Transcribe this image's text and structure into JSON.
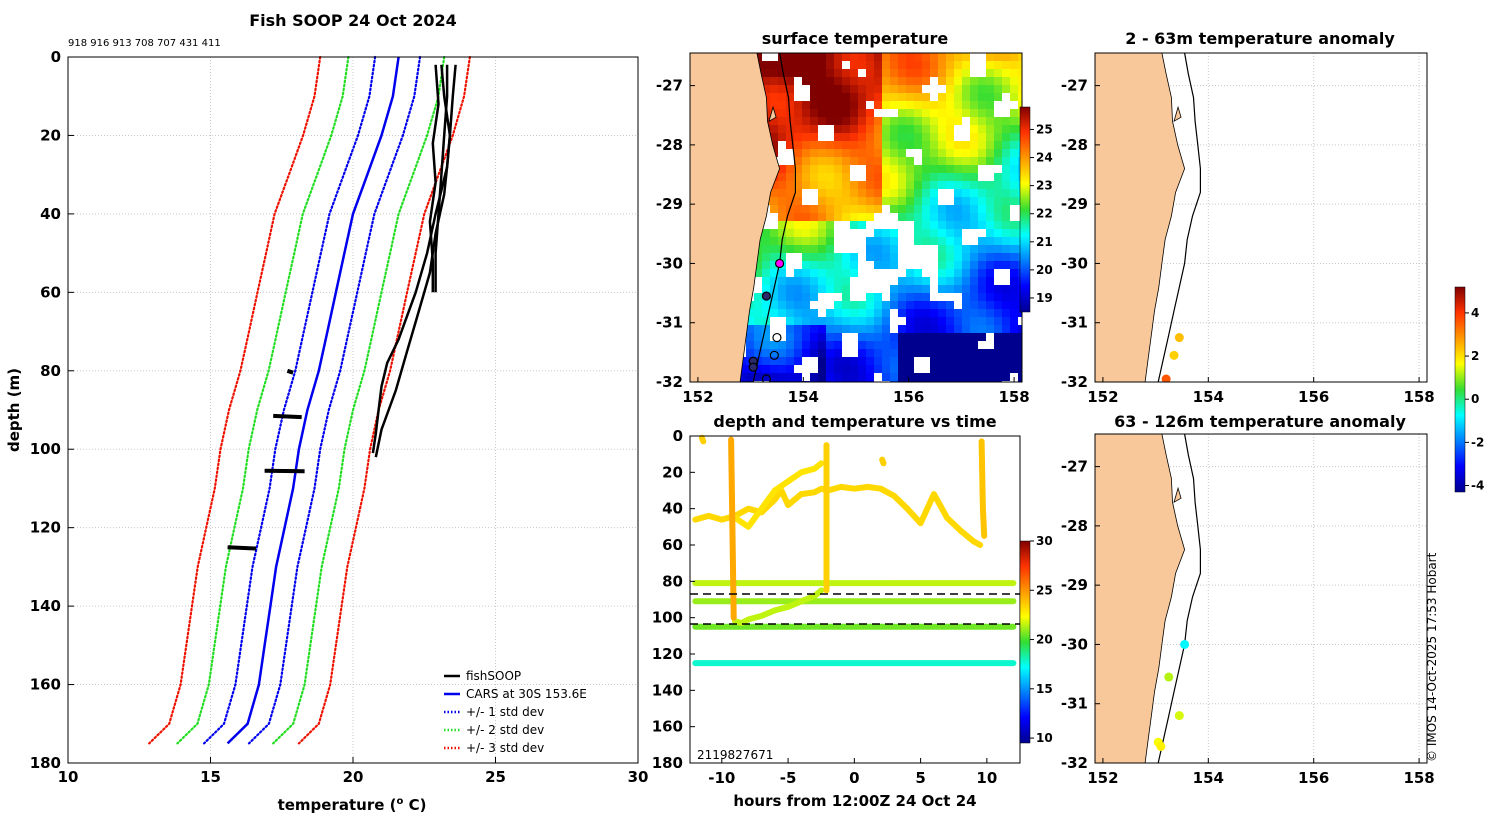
{
  "colors": {
    "land": "#f8c89a",
    "profile": "#000000",
    "cars": "#0000ee",
    "std1": "#0000ee",
    "std2": "#22dd22",
    "std3": "#ee1100",
    "grid": "#c8c8c8"
  },
  "credit": "© IMOS 14-Oct-2025 17:53 Hobart",
  "chart_data": [
    {
      "id": "profile",
      "type": "line",
      "title": "Fish SOOP 24 Oct 2024",
      "ids_label": "918 916 913 708 707 431 411",
      "xlabel": "temperature (",
      "xlabel_sup": "o",
      "xlabel_tail": " C)",
      "ylabel": "depth (m)",
      "xlim": [
        10,
        30
      ],
      "ylim": [
        180,
        0
      ],
      "xticks": [
        10,
        15,
        20,
        25,
        30
      ],
      "yticks": [
        0,
        20,
        40,
        60,
        80,
        100,
        120,
        140,
        160,
        180
      ],
      "legend": [
        "fishSOOP",
        "CARS at 30S 153.6E",
        "+/- 1 std dev",
        "+/- 2 std dev",
        "+/- 3 std dev"
      ],
      "legend_position": "bottom-right",
      "cars": {
        "depth": [
          0,
          10,
          20,
          30,
          40,
          50,
          60,
          70,
          80,
          90,
          100,
          110,
          120,
          130,
          140,
          150,
          160,
          170,
          175
        ],
        "temp": [
          21.6,
          21.4,
          21.0,
          20.5,
          20.0,
          19.7,
          19.4,
          19.1,
          18.8,
          18.4,
          18.1,
          17.9,
          17.6,
          17.3,
          17.1,
          16.9,
          16.7,
          16.3,
          15.6
        ]
      },
      "std_offsets": [
        0.75,
        1.6,
        2.5
      ],
      "fishsoop_casts": [
        {
          "depth": [
            2,
            10,
            20,
            30,
            40,
            50,
            60
          ],
          "temp": [
            23.3,
            23.3,
            23.2,
            23.1,
            23.0,
            22.9,
            22.9
          ]
        },
        {
          "depth": [
            2,
            10,
            20,
            28,
            34,
            40,
            50,
            55,
            60,
            66,
            72,
            78,
            84,
            90,
            96,
            101
          ],
          "temp": [
            23.1,
            23.2,
            23.4,
            23.3,
            23.1,
            22.9,
            22.6,
            22.4,
            22.2,
            21.9,
            21.6,
            21.2,
            21.0,
            20.9,
            20.8,
            20.7
          ]
        },
        {
          "depth": [
            2,
            10,
            20,
            28,
            35,
            45,
            55,
            65,
            75,
            85,
            95,
            102
          ],
          "temp": [
            23.6,
            23.5,
            23.4,
            23.3,
            23.2,
            22.9,
            22.7,
            22.3,
            21.9,
            21.5,
            21.0,
            20.8
          ]
        },
        {
          "depth": [
            2,
            12,
            22,
            32,
            42,
            52,
            60
          ],
          "temp": [
            22.9,
            23.0,
            22.8,
            22.9,
            22.7,
            22.8,
            22.8
          ]
        },
        {
          "depth": [
            80,
            80.5
          ],
          "temp": [
            17.7,
            17.9
          ]
        },
        {
          "depth": [
            91.5,
            91.8
          ],
          "temp": [
            17.2,
            18.2
          ]
        },
        {
          "depth": [
            105.5,
            105.6
          ],
          "temp": [
            16.9,
            18.3
          ]
        },
        {
          "depth": [
            125,
            125.3
          ],
          "temp": [
            15.6,
            16.6
          ]
        }
      ]
    },
    {
      "id": "surface",
      "type": "heatmap",
      "title": "surface temperature",
      "xlim": [
        151.85,
        158.15
      ],
      "ylim": [
        -32,
        -26.45
      ],
      "xticks": [
        152,
        154,
        156,
        158
      ],
      "yticks": [
        -27,
        -28,
        -29,
        -30,
        -31,
        -32
      ],
      "colorbar": {
        "min": 18.5,
        "max": 25.8,
        "ticks": [
          19,
          20,
          21,
          22,
          23,
          24,
          25
        ]
      },
      "markers": [
        {
          "lon": 153.55,
          "lat": -30.0,
          "kind": "magenta"
        },
        {
          "lon": 153.3,
          "lat": -30.55,
          "kind": "dark"
        },
        {
          "lon": 153.5,
          "lat": -31.25,
          "kind": "open"
        },
        {
          "lon": 153.45,
          "lat": -31.55,
          "kind": "open"
        },
        {
          "lon": 153.05,
          "lat": -31.65,
          "kind": "dark"
        },
        {
          "lon": 153.05,
          "lat": -31.75,
          "kind": "dark"
        },
        {
          "lon": 153.3,
          "lat": -31.95,
          "kind": "open"
        }
      ]
    },
    {
      "id": "timeseries",
      "type": "scatter",
      "title": "depth and temperature vs time",
      "xlabel": "hours from 12:00Z 24 Oct 24",
      "xlim": [
        -12.4,
        12.5
      ],
      "ylim": [
        180,
        0
      ],
      "xticks": [
        -10,
        -5,
        0,
        5,
        10
      ],
      "yticks": [
        0,
        20,
        40,
        60,
        80,
        100,
        120,
        140,
        160,
        180
      ],
      "colorbar": {
        "min": 9.5,
        "max": 30,
        "ticks": [
          10,
          15,
          20,
          25,
          30
        ]
      },
      "hlines": [
        87,
        103.5
      ],
      "bottom_label": "2119827671",
      "series": [
        {
          "temp": 21.5,
          "hours": [
            -12,
            12
          ],
          "depths": [
            81,
            81
          ]
        },
        {
          "temp": 21.0,
          "hours": [
            -12,
            12
          ],
          "depths": [
            91,
            91
          ]
        },
        {
          "temp": 20.5,
          "hours": [
            -12,
            12
          ],
          "depths": [
            105,
            105
          ]
        },
        {
          "temp": 17.8,
          "hours": [
            -12,
            12
          ],
          "depths": [
            125,
            125
          ]
        },
        {
          "temp": 23.3,
          "hours": [
            -12,
            -11,
            -10,
            -9,
            -8,
            -7,
            -6,
            -5.5,
            -5,
            -4,
            -3,
            -2.5,
            -2,
            -1,
            0,
            1,
            2,
            3,
            4,
            5,
            6,
            7,
            8,
            9,
            9.5
          ],
          "depths": [
            46,
            44,
            46,
            44,
            40,
            42,
            35,
            30,
            38,
            32,
            31,
            29,
            30,
            28,
            29,
            28,
            29,
            33,
            40,
            48,
            32,
            45,
            52,
            58,
            60
          ]
        },
        {
          "temp": 23.0,
          "hours": [
            -9,
            -8,
            -7,
            -6,
            -5,
            -4,
            -3,
            -2.5
          ],
          "depths": [
            45,
            50,
            40,
            30,
            25,
            20,
            18,
            15
          ]
        },
        {
          "temp": 21.5,
          "hours": [
            -9,
            -8.5,
            -8,
            -7,
            -6,
            -5,
            -4,
            -3,
            -2.5
          ],
          "depths": [
            102,
            103,
            101,
            99,
            96,
            94,
            91,
            88,
            85
          ]
        },
        {
          "temp": 24.5,
          "hours": [
            -9.3,
            -9.2,
            -9.1
          ],
          "depths": [
            2,
            50,
            100
          ]
        },
        {
          "temp": 23.5,
          "hours": [
            -2.1,
            -2.1,
            -2.1
          ],
          "depths": [
            5,
            50,
            85
          ]
        },
        {
          "temp": 23.8,
          "hours": [
            9.6,
            9.7,
            9.8
          ],
          "depths": [
            3,
            40,
            55
          ]
        },
        {
          "temp": 23.5,
          "hours": [
            -11.5,
            -11.4
          ],
          "depths": [
            1,
            3
          ]
        },
        {
          "temp": 23.5,
          "hours": [
            2.1,
            2.2
          ],
          "depths": [
            13,
            15
          ]
        }
      ]
    },
    {
      "id": "anom1",
      "type": "scatter",
      "title": "2 - 63m temperature anomaly",
      "xlim": [
        151.85,
        158.15
      ],
      "ylim": [
        -32,
        -26.45
      ],
      "xticks": [
        152,
        154,
        156,
        158
      ],
      "yticks": [
        -27,
        -28,
        -29,
        -30,
        -31,
        -32
      ],
      "points": [
        {
          "lon": 153.45,
          "lat": -31.25,
          "anom": 2.4
        },
        {
          "lon": 153.35,
          "lat": -31.55,
          "anom": 2.2
        },
        {
          "lon": 153.2,
          "lat": -31.95,
          "anom": 3.6
        }
      ]
    },
    {
      "id": "anom2",
      "type": "scatter",
      "title": "63 - 126m temperature anomaly",
      "xlim": [
        151.85,
        158.15
      ],
      "ylim": [
        -32,
        -26.45
      ],
      "xticks": [
        152,
        154,
        156,
        158
      ],
      "yticks": [
        -27,
        -28,
        -29,
        -30,
        -31,
        -32
      ],
      "points": [
        {
          "lon": 153.55,
          "lat": -30.0,
          "anom": -0.8
        },
        {
          "lon": 153.25,
          "lat": -30.55,
          "anom": 1.2
        },
        {
          "lon": 153.45,
          "lat": -31.2,
          "anom": 1.4
        },
        {
          "lon": 153.05,
          "lat": -31.65,
          "anom": 1.6
        },
        {
          "lon": 153.1,
          "lat": -31.72,
          "anom": 1.8
        }
      ],
      "colorbar": {
        "min": -4.3,
        "max": 5.2,
        "ticks": [
          4,
          2,
          0,
          -2,
          -4
        ]
      }
    }
  ]
}
